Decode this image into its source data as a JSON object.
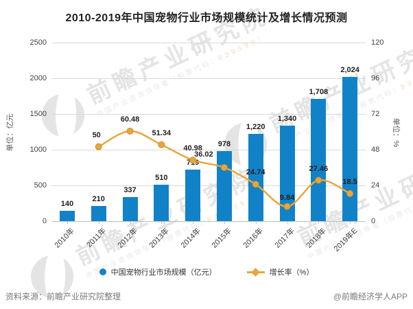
{
  "title": "2010-2019年中国宠物行业市场规模统计及增长情况预测",
  "chart_data": {
    "type": "combo-bar-line",
    "title": "2010-2019年中国宠物行业市场规模统计及增长情况预测",
    "categories": [
      "2010年",
      "2011年",
      "2012年",
      "2013年",
      "2014年",
      "2015年",
      "2016年",
      "2017年",
      "2018年",
      "2019年E"
    ],
    "series": [
      {
        "name": "中国宠物行业市场规模（亿元）",
        "type": "bar",
        "axis": "left",
        "color": "#1182c8",
        "values": [
          140,
          210,
          337,
          510,
          719,
          978,
          1220,
          1340,
          1708,
          2024
        ],
        "labels": [
          "140",
          "210",
          "337",
          "510",
          "719",
          "978",
          "1,220",
          "1,340",
          "1,708",
          "2,024"
        ]
      },
      {
        "name": "增长率（%）",
        "type": "line",
        "axis": "right",
        "color": "#e9a63c",
        "marker": "circle",
        "start_index": 1,
        "values": [
          50,
          60.48,
          51.34,
          40.98,
          36.02,
          24.74,
          9.84,
          27.46,
          18.5
        ],
        "labels": [
          "50",
          "60.48",
          "51.34",
          "40.98",
          "36.02",
          "24.74",
          "9.84",
          "27.46",
          "18.5"
        ]
      }
    ],
    "left_axis": {
      "label": "单位：亿元",
      "min": 0,
      "max": 2500,
      "step": 500,
      "ticks": [
        "2500",
        "2000",
        "1500",
        "1000",
        "500",
        "0"
      ]
    },
    "right_axis": {
      "label": "单位：%",
      "min": 0,
      "max": 120,
      "step": 24,
      "ticks": [
        "120",
        "96",
        "72",
        "48",
        "24",
        "0"
      ]
    },
    "grid": true,
    "legend_position": "bottom"
  },
  "footer": {
    "source": "资料来源：前瞻产业研究院整理",
    "credit": "@前瞻经济学人APP"
  },
  "watermark": {
    "text": "前瞻产业研究院",
    "subtext": "中国产业咨询领导者（股票代码：",
    "digits": "839599",
    "suffix": "）"
  }
}
